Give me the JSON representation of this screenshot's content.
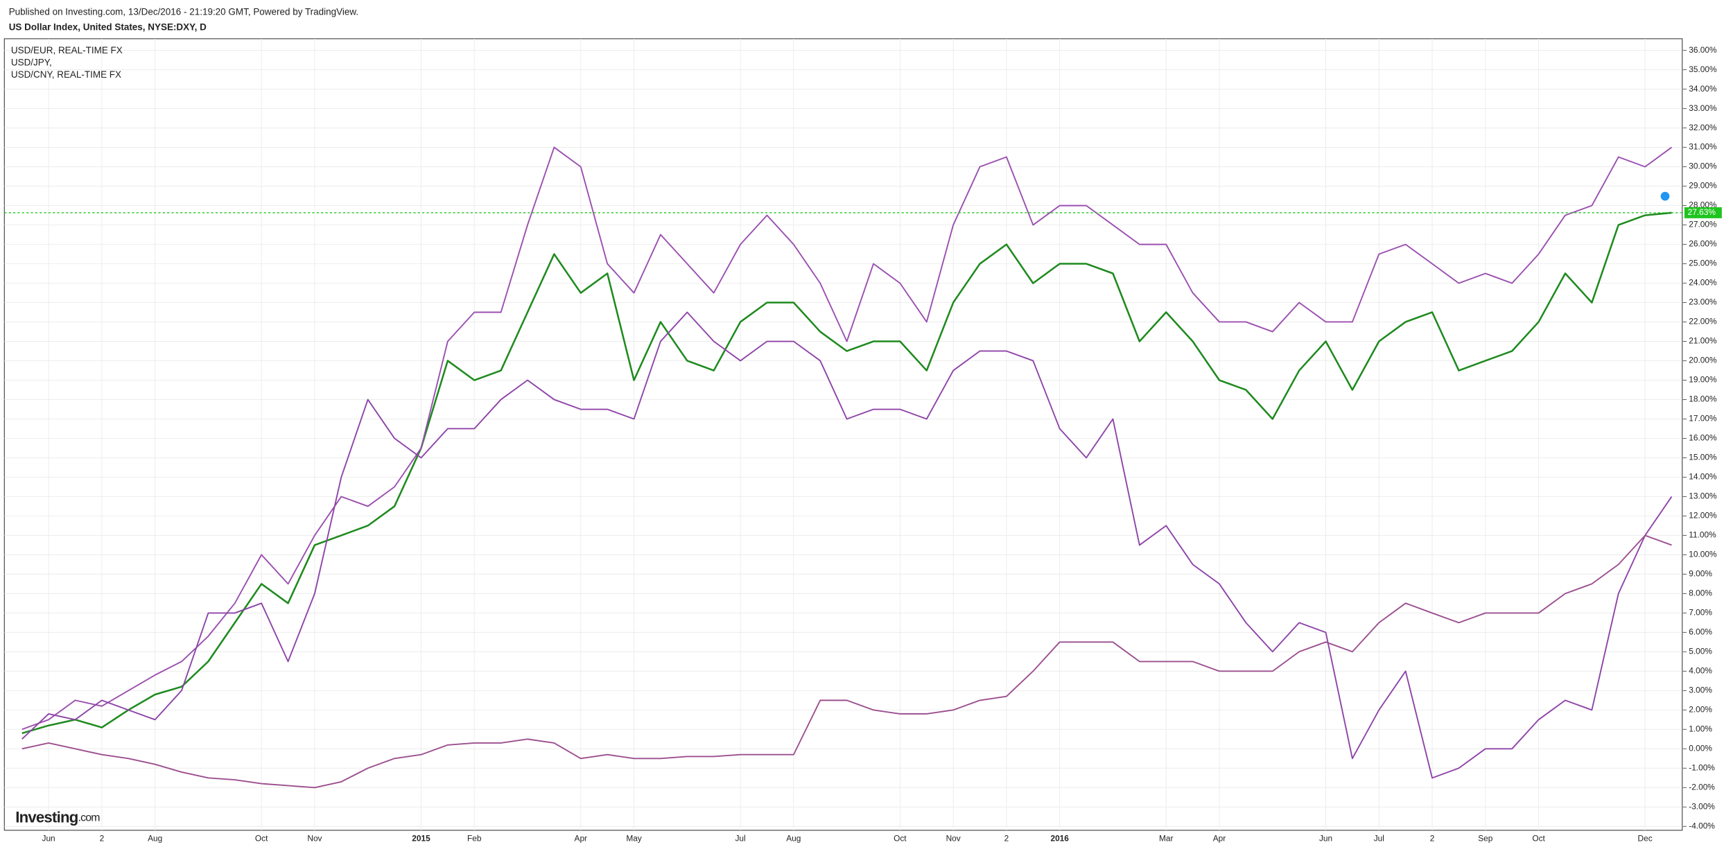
{
  "chart_data": {
    "type": "line",
    "subtitle": "Published on Investing.com, 13/Dec/2016 - 21:19:20 GMT, Powered by TradingView.",
    "logo": "Investing",
    "logo_suffix": ".com",
    "categories": [
      null,
      "Jun",
      null,
      "2",
      null,
      "Aug",
      null,
      null,
      null,
      "Oct",
      null,
      "Nov",
      null,
      null,
      null,
      "2015",
      null,
      "Feb",
      null,
      null,
      null,
      "Apr",
      null,
      "May",
      null,
      null,
      null,
      "Jul",
      null,
      "Aug",
      null,
      null,
      null,
      "Oct",
      null,
      "Nov",
      null,
      "2",
      null,
      "2016",
      null,
      null,
      null,
      "Mar",
      null,
      "Apr",
      null,
      null,
      null,
      "Jun",
      null,
      "Jul",
      null,
      "2",
      null,
      "Sep",
      null,
      "Oct",
      null,
      null,
      null,
      "Dec",
      null
    ],
    "series": [
      {
        "name": "US Dollar Index, United States, NYSE:DXY, D",
        "color": "#1e8a1e",
        "values": [
          0.8,
          1.2,
          1.5,
          1.1,
          2,
          2.8,
          3.2,
          4.5,
          6.5,
          8.5,
          7.5,
          10.5,
          11,
          11.5,
          12.5,
          15.5,
          20,
          19,
          19.5,
          22.5,
          25.5,
          23.5,
          24.5,
          19,
          22,
          20,
          19.5,
          22,
          23,
          23,
          21.5,
          20.5,
          21,
          21,
          19.5,
          23,
          25,
          26,
          24,
          25,
          25,
          24.5,
          21,
          22.5,
          21,
          19,
          18.5,
          17,
          19.5,
          21,
          18.5,
          21,
          22,
          22.5,
          19.5,
          20,
          20.5,
          22,
          24.5,
          23,
          27,
          27.5,
          27.63
        ],
        "value_labels": [
          null,
          null,
          null,
          null,
          null,
          null,
          null,
          null,
          null,
          null,
          null,
          null,
          null,
          null,
          null,
          null,
          null,
          null,
          null,
          null,
          null,
          null,
          null,
          null,
          null,
          null,
          null,
          null,
          null,
          null,
          null,
          null,
          null,
          null,
          null,
          null,
          null,
          null,
          null,
          null,
          null,
          null,
          null,
          null,
          null,
          null,
          null,
          null,
          null,
          null,
          null,
          null,
          null,
          null,
          null,
          null,
          null,
          null,
          null,
          null,
          null,
          null,
          "27.63%"
        ]
      },
      {
        "name": "USD/EUR, REAL-TIME FX",
        "color": "#9b4fb0",
        "values": [
          1,
          1.5,
          2.5,
          2.2,
          3,
          3.8,
          4.5,
          5.8,
          7.5,
          10,
          8.5,
          11,
          13,
          12.5,
          13.5,
          15.5,
          21,
          22.5,
          22.5,
          27,
          31,
          30,
          25,
          23.5,
          26.5,
          25,
          23.5,
          26,
          27.5,
          26,
          24,
          21,
          25,
          24,
          22,
          27,
          30,
          30.5,
          27,
          28,
          28,
          27,
          26,
          26,
          23.5,
          22,
          22,
          21.5,
          23,
          22,
          22,
          25.5,
          26,
          25,
          24,
          24.5,
          24,
          25.5,
          27.5,
          28,
          30.5,
          30,
          31
        ]
      },
      {
        "name": "USD/JPY,",
        "color": "#8e44a8",
        "values": [
          0.5,
          1.8,
          1.5,
          2.5,
          2,
          1.5,
          3,
          7,
          7,
          7.5,
          4.5,
          8,
          14,
          18,
          16,
          15,
          16.5,
          16.5,
          18,
          19,
          18,
          17.5,
          17.5,
          17,
          21,
          22.5,
          21,
          20,
          21,
          21,
          20,
          17,
          17.5,
          17.5,
          17,
          19.5,
          20.5,
          20.5,
          20,
          16.5,
          15,
          17,
          10.5,
          11.5,
          9.5,
          8.5,
          6.5,
          5,
          6.5,
          6,
          -0.5,
          2,
          4,
          -1.5,
          -1,
          0,
          0,
          1.5,
          2.5,
          2,
          8,
          11,
          13
        ]
      },
      {
        "name": "USD/CNY, REAL-TIME FX",
        "color": "#9c4f8f",
        "values": [
          0,
          0.3,
          0,
          -0.3,
          -0.5,
          -0.8,
          -1.2,
          -1.5,
          -1.6,
          -1.8,
          -1.9,
          -2,
          -1.7,
          -1,
          -0.5,
          -0.3,
          0.2,
          0.3,
          0.3,
          0.5,
          0.3,
          -0.5,
          -0.3,
          -0.5,
          -0.5,
          -0.4,
          -0.4,
          -0.3,
          -0.3,
          -0.3,
          2.5,
          2.5,
          2,
          1.8,
          1.8,
          2,
          2.5,
          2.7,
          4,
          5.5,
          5.5,
          5.5,
          4.5,
          4.5,
          4.5,
          4,
          4,
          4,
          5,
          5.5,
          5,
          6.5,
          7.5,
          7,
          6.5,
          7,
          7,
          7,
          8,
          8.5,
          9.5,
          11,
          10.5
        ]
      }
    ],
    "ylim": [
      -4.2,
      36.6
    ],
    "yticks": [
      {
        "value": -4,
        "label": "-4.00%"
      },
      {
        "value": -3,
        "label": "-3.00%"
      },
      {
        "value": -2,
        "label": "-2.00%"
      },
      {
        "value": -1,
        "label": "-1.00%"
      },
      {
        "value": 0,
        "label": "0.00%"
      },
      {
        "value": 1,
        "label": "1.00%"
      },
      {
        "value": 2,
        "label": "2.00%"
      },
      {
        "value": 3,
        "label": "3.00%"
      },
      {
        "value": 4,
        "label": "4.00%"
      },
      {
        "value": 5,
        "label": "5.00%"
      },
      {
        "value": 6,
        "label": "6.00%"
      },
      {
        "value": 7,
        "label": "7.00%"
      },
      {
        "value": 8,
        "label": "8.00%"
      },
      {
        "value": 9,
        "label": "9.00%"
      },
      {
        "value": 10,
        "label": "10.00%"
      },
      {
        "value": 11,
        "label": "11.00%"
      },
      {
        "value": 12,
        "label": "12.00%"
      },
      {
        "value": 13,
        "label": "13.00%"
      },
      {
        "value": 14,
        "label": "14.00%"
      },
      {
        "value": 15,
        "label": "15.00%"
      },
      {
        "value": 16,
        "label": "16.00%"
      },
      {
        "value": 17,
        "label": "17.00%"
      },
      {
        "value": 18,
        "label": "18.00%"
      },
      {
        "value": 19,
        "label": "19.00%"
      },
      {
        "value": 20,
        "label": "20.00%"
      },
      {
        "value": 21,
        "label": "21.00%"
      },
      {
        "value": 22,
        "label": "22.00%"
      },
      {
        "value": 23,
        "label": "23.00%"
      },
      {
        "value": 24,
        "label": "24.00%"
      },
      {
        "value": 25,
        "label": "25.00%"
      },
      {
        "value": 26,
        "label": "26.00%"
      },
      {
        "value": 27,
        "label": "27.00%"
      },
      {
        "value": 28,
        "label": "28.00%"
      },
      {
        "value": 29,
        "label": "29.00%"
      },
      {
        "value": 30,
        "label": "30.00%"
      },
      {
        "value": 31,
        "label": "31.00%"
      },
      {
        "value": 32,
        "label": "32.00%"
      },
      {
        "value": 33,
        "label": "33.00%"
      },
      {
        "value": 34,
        "label": "34.00%"
      },
      {
        "value": 35,
        "label": "35.00%"
      },
      {
        "value": 36,
        "label": "36.00%"
      }
    ],
    "grid": true,
    "legend": "top-left",
    "last_value_color": "#1fc41f"
  }
}
